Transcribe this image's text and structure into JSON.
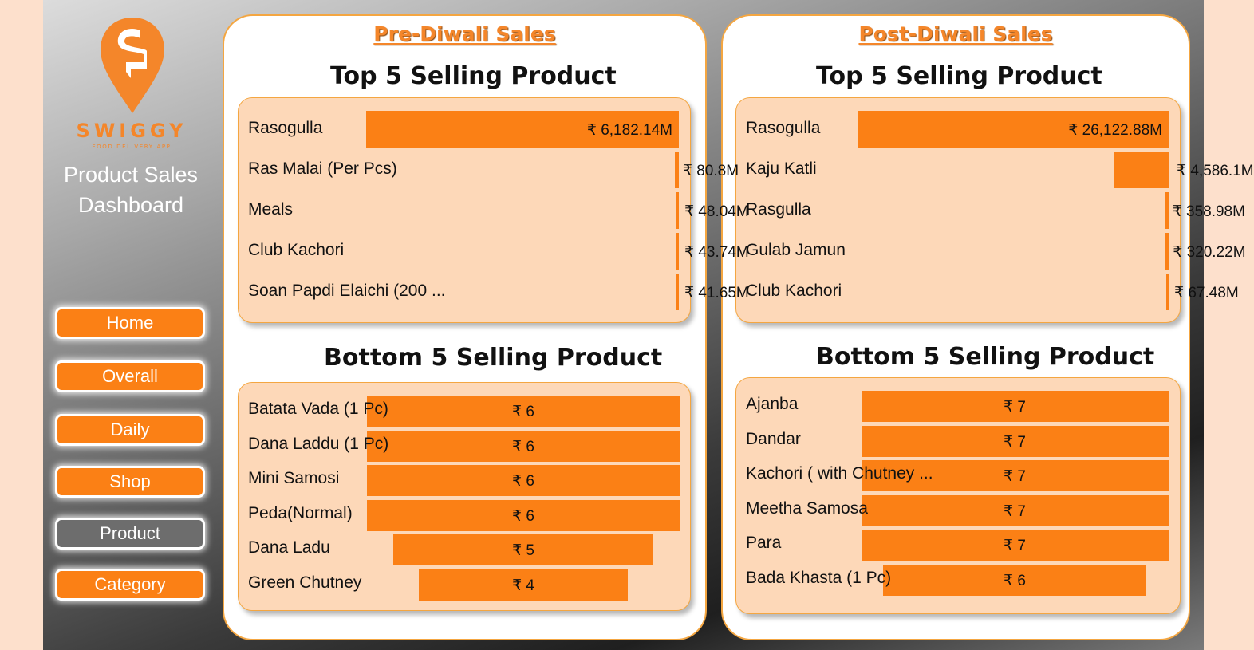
{
  "sidebar": {
    "brand": "SWIGGY",
    "brand_sub": "FOOD DELIVERY APP",
    "title_line1": "Product Sales",
    "title_line2": "Dashboard",
    "nav": [
      {
        "label": "Home",
        "active": false
      },
      {
        "label": "Overall",
        "active": false
      },
      {
        "label": "Daily",
        "active": false
      },
      {
        "label": "Shop",
        "active": false
      },
      {
        "label": "Product",
        "active": true
      },
      {
        "label": "Category",
        "active": false
      }
    ]
  },
  "colors": {
    "accent": "#fb8015",
    "card_bg": "#fdd8b8",
    "heading": "#f4862a",
    "active_nav": "#6d6d6d"
  },
  "pre": {
    "heading": "Pre-Diwali Sales",
    "top_title": "Top 5 Selling Product",
    "bottom_title": "Bottom 5 Selling Product"
  },
  "post": {
    "heading": "Post-Diwali Sales",
    "top_title": "Top 5 Selling Product",
    "bottom_title": "Bottom 5 Selling Product"
  },
  "chart_data": [
    {
      "type": "bar",
      "orientation": "horizontal",
      "categories": [
        "Rasogulla",
        "Ras Malai (Per Pcs)",
        "Meals",
        "Club Kachori",
        "Soan Papdi Elaichi (200 ..."
      ],
      "values": [
        6182.14,
        80.8,
        48.04,
        43.74,
        41.65
      ],
      "value_labels": [
        "₹ 6,182.14M",
        "₹ 80.8M",
        "₹ 48.04M",
        "₹ 43.74M",
        "₹ 41.65M"
      ]
    },
    {
      "type": "bar",
      "orientation": "horizontal",
      "categories": [
        "Batata Vada (1 Pc)",
        "Dana Laddu (1 Pc)",
        "Mini Samosi",
        "Peda(Normal)",
        "Dana Ladu",
        "Green Chutney"
      ],
      "values": [
        6,
        6,
        6,
        6,
        5,
        4
      ],
      "value_labels": [
        "₹ 6",
        "₹ 6",
        "₹ 6",
        "₹ 6",
        "₹ 5",
        "₹ 4"
      ]
    },
    {
      "type": "bar",
      "orientation": "horizontal",
      "categories": [
        "Rasogulla",
        "Kaju Katli",
        "Rasgulla",
        "Gulab Jamun",
        "Club Kachori"
      ],
      "values": [
        26122.88,
        4586.1,
        358.98,
        320.22,
        67.48
      ],
      "value_labels": [
        "₹ 26,122.88M",
        "₹ 4,586.1M",
        "₹ 358.98M",
        "₹ 320.22M",
        "₹ 67.48M"
      ]
    },
    {
      "type": "bar",
      "orientation": "horizontal",
      "categories": [
        "Ajanba",
        "Dandar",
        "Kachori ( with Chutney ...",
        "Meetha Samosa",
        "Para",
        "Bada Khasta (1 Pc)"
      ],
      "values": [
        7,
        7,
        7,
        7,
        7,
        6
      ],
      "value_labels": [
        "₹ 7",
        "₹ 7",
        "₹ 7",
        "₹ 7",
        "₹ 7",
        "₹ 6"
      ]
    }
  ]
}
